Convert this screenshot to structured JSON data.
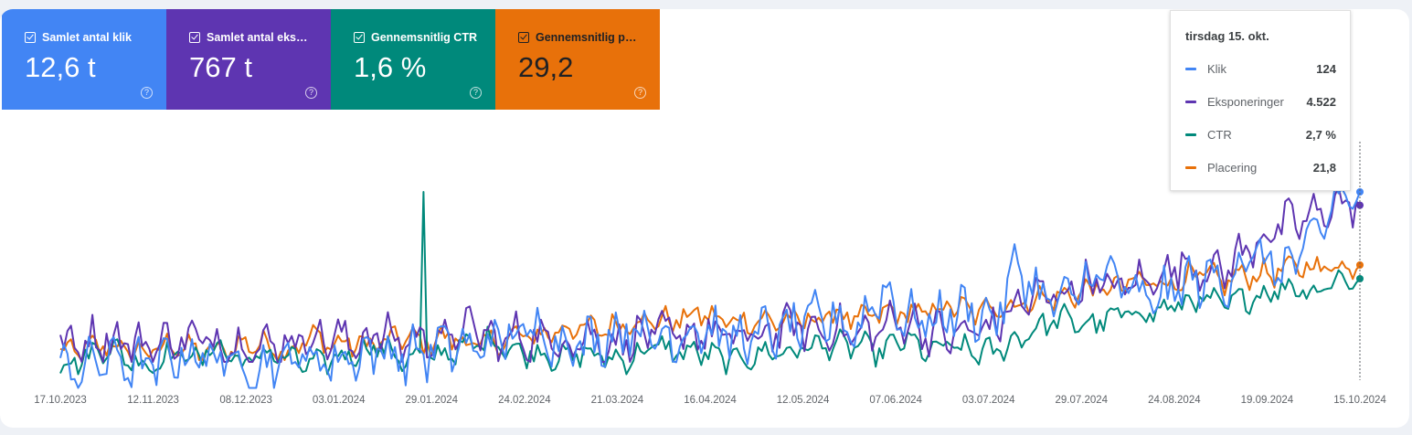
{
  "tiles": [
    {
      "label": "Samlet antal klik",
      "value": "12,6 t",
      "color": "#4285f4",
      "text_color": "#ffffff"
    },
    {
      "label": "Samlet antal eksp…",
      "value": "767 t",
      "color": "#5e35b1",
      "text_color": "#ffffff"
    },
    {
      "label": "Gennemsnitlig CTR",
      "value": "1,6 %",
      "color": "#00897b",
      "text_color": "#ffffff"
    },
    {
      "label": "Gennemsnitlig po…",
      "value": "29,2",
      "color": "#e8710a",
      "text_color": "#202124"
    }
  ],
  "tooltip": {
    "date": "tirsdag 15. okt.",
    "rows": [
      {
        "name": "Klik",
        "value": "124",
        "color": "#4285f4"
      },
      {
        "name": "Eksponeringer",
        "value": "4.522",
        "color": "#5e35b1"
      },
      {
        "name": "CTR",
        "value": "2,7 %",
        "color": "#00897b"
      },
      {
        "name": "Placering",
        "value": "21,8",
        "color": "#e8710a"
      }
    ]
  },
  "chart_data": {
    "type": "line",
    "x_ticks": [
      "17.10.2023",
      "12.11.2023",
      "08.12.2023",
      "03.01.2024",
      "29.01.2024",
      "24.02.2024",
      "21.03.2024",
      "16.04.2024",
      "12.05.2024",
      "07.06.2024",
      "03.07.2024",
      "29.07.2024",
      "24.08.2024",
      "19.09.2024",
      "15.10.2024"
    ],
    "axes_shown": false,
    "grid": false,
    "series": [
      {
        "name": "Klik",
        "color": "#4285f4",
        "values": [
          15,
          16,
          22,
          20,
          16,
          24,
          25,
          22,
          18,
          17,
          22,
          23,
          20,
          25,
          27,
          24,
          26,
          31,
          27,
          33,
          36,
          40,
          34,
          31,
          36,
          42,
          34,
          36,
          42,
          36,
          33,
          38,
          40,
          44,
          46,
          40,
          65,
          48,
          44,
          50,
          52,
          45,
          80,
          60,
          55,
          70,
          75,
          60,
          58,
          65,
          72,
          68,
          85,
          80,
          78,
          95,
          120,
          124
        ]
      },
      {
        "name": "Eksponeringer",
        "color": "#5e35b1",
        "values": [
          1900,
          2000,
          2100,
          2000,
          1900,
          2050,
          2050,
          2000,
          1950,
          1900,
          2000,
          2100,
          2050,
          2000,
          2150,
          2000,
          2100,
          2050,
          2300,
          2000,
          2100,
          2050,
          2000,
          2100,
          1950,
          2050,
          2150,
          2100,
          2200,
          2100,
          2050,
          2150,
          2300,
          2200,
          2250,
          2100,
          2250,
          2400,
          2200,
          2100,
          2200,
          2300,
          2700,
          2850,
          2900,
          3100,
          3000,
          3050,
          3200,
          3400,
          3400,
          3300,
          3700,
          4000,
          4200,
          4300,
          4600,
          4522
        ]
      },
      {
        "name": "CTR",
        "color": "#00897b",
        "values": [
          1.4,
          1.5,
          1.7,
          1.5,
          1.4,
          1.6,
          1.5,
          1.7,
          1.4,
          1.6,
          1.5,
          1.4,
          1.5,
          1.6,
          1.7,
          1.5,
          1.5,
          1.6,
          1.7,
          1.8,
          1.6,
          1.6,
          1.5,
          1.6,
          1.5,
          1.5,
          1.7,
          1.6,
          1.6,
          1.5,
          1.5,
          1.6,
          1.6,
          1.7,
          1.7,
          1.7,
          1.6,
          1.8,
          1.6,
          1.7,
          1.6,
          1.6,
          1.8,
          2.0,
          2.1,
          2.0,
          2.1,
          2.2,
          2.2,
          2.3,
          2.4,
          2.3,
          2.4,
          2.5,
          2.6,
          2.5,
          2.7,
          2.7
        ]
      },
      {
        "name": "Placering",
        "color": "#e8710a",
        "values": [
          33,
          33,
          32,
          33,
          33,
          32,
          33,
          33,
          32,
          32,
          33,
          31,
          32,
          32,
          32,
          31,
          32,
          31,
          32,
          32,
          31,
          31,
          30,
          30,
          30,
          29,
          29,
          29,
          28,
          29,
          29,
          29,
          29,
          29,
          28,
          29,
          28,
          28,
          28,
          27,
          28,
          27,
          27,
          26,
          26,
          25,
          25,
          24,
          24,
          24,
          23,
          24,
          23,
          23,
          22,
          22,
          22,
          21.8
        ]
      }
    ]
  }
}
